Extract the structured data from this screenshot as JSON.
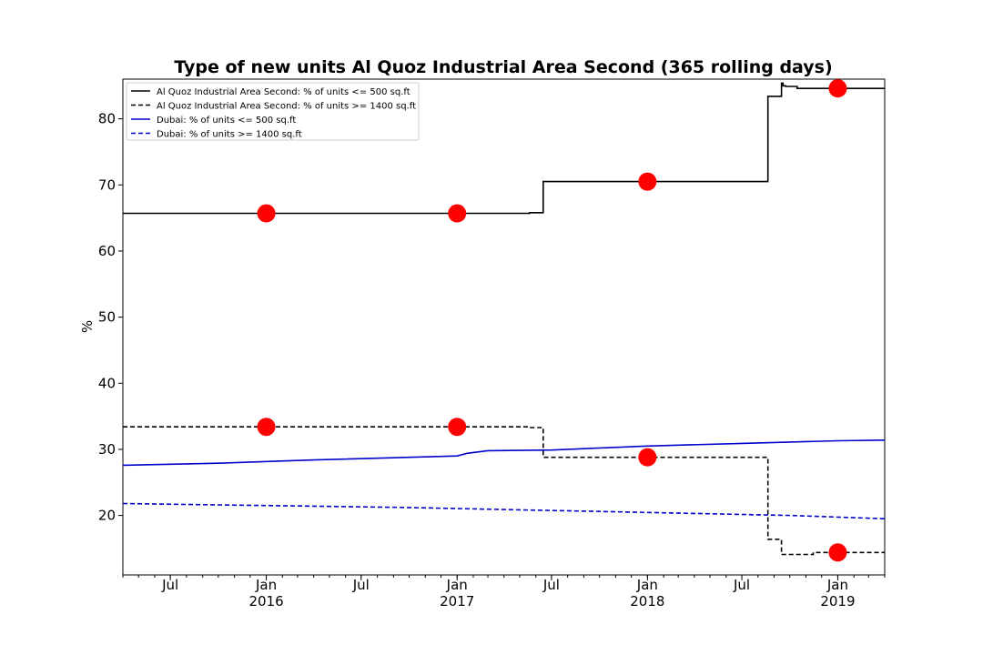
{
  "chart_data": {
    "type": "line",
    "title": "Type of new units Al Quoz Industrial Area Second (365 rolling days)",
    "xlabel": "",
    "ylabel": "%",
    "xlim": [
      "2015-04-01",
      "2019-04-01"
    ],
    "ylim": [
      11,
      86
    ],
    "yticks": [
      20,
      30,
      40,
      50,
      60,
      70,
      80
    ],
    "xticks": [
      {
        "date": "2015-07-01",
        "label": "Jul",
        "sub": ""
      },
      {
        "date": "2016-01-01",
        "label": "Jan",
        "sub": "2016"
      },
      {
        "date": "2016-07-01",
        "label": "Jul",
        "sub": ""
      },
      {
        "date": "2017-01-01",
        "label": "Jan",
        "sub": "2017"
      },
      {
        "date": "2017-07-01",
        "label": "Jul",
        "sub": ""
      },
      {
        "date": "2018-01-01",
        "label": "Jan",
        "sub": "2018"
      },
      {
        "date": "2018-07-01",
        "label": "Jul",
        "sub": ""
      },
      {
        "date": "2019-01-01",
        "label": "Jan",
        "sub": "2019"
      }
    ],
    "legend_position": "top-left",
    "grid": false,
    "series": [
      {
        "name": "Al Quoz Industrial Area Second: % of units <= 500 sq.ft",
        "color": "#000000",
        "dashed": false,
        "step": true,
        "x": [
          "2015-04-01",
          "2017-05-20",
          "2017-06-15",
          "2018-08-20",
          "2018-09-15",
          "2018-09-18",
          "2018-09-23",
          "2018-10-15",
          "2019-04-01"
        ],
        "y": [
          65.7,
          65.8,
          70.5,
          83.4,
          85.4,
          85.0,
          84.9,
          84.6,
          84.6
        ]
      },
      {
        "name": "Al Quoz Industrial Area Second: % of units >= 1400 sq.ft",
        "color": "#000000",
        "dashed": true,
        "step": true,
        "x": [
          "2015-04-01",
          "2017-05-20",
          "2017-06-15",
          "2018-08-20",
          "2018-09-15",
          "2018-09-22",
          "2018-11-15",
          "2019-04-01"
        ],
        "y": [
          33.4,
          33.3,
          28.8,
          16.4,
          14.1,
          14.1,
          14.4,
          14.4
        ]
      },
      {
        "name": "Dubai: % of units <= 500 sq.ft",
        "color": "#0000cc",
        "dashed": false,
        "step": false,
        "x": [
          "2015-04-01",
          "2015-10-01",
          "2016-04-01",
          "2016-10-01",
          "2017-01-01",
          "2017-01-20",
          "2017-03-01",
          "2017-07-01",
          "2018-01-01",
          "2018-07-01",
          "2019-01-01",
          "2019-04-01"
        ],
        "y": [
          27.6,
          27.9,
          28.4,
          28.8,
          29.0,
          29.4,
          29.8,
          29.9,
          30.5,
          30.9,
          31.3,
          31.4
        ]
      },
      {
        "name": "Dubai: % of units >= 1400 sq.ft",
        "color": "#0000cc",
        "dashed": true,
        "step": false,
        "x": [
          "2015-04-01",
          "2015-10-01",
          "2016-04-01",
          "2016-10-01",
          "2017-04-01",
          "2017-10-01",
          "2018-04-01",
          "2018-10-01",
          "2019-04-01"
        ],
        "y": [
          21.8,
          21.6,
          21.4,
          21.2,
          20.9,
          20.6,
          20.3,
          20.0,
          19.5
        ]
      }
    ],
    "markers": {
      "color": "#ff0000",
      "points": [
        {
          "x": "2016-01-01",
          "y": 65.7
        },
        {
          "x": "2017-01-01",
          "y": 65.7
        },
        {
          "x": "2018-01-01",
          "y": 70.5
        },
        {
          "x": "2019-01-01",
          "y": 84.6
        },
        {
          "x": "2016-01-01",
          "y": 33.4
        },
        {
          "x": "2017-01-01",
          "y": 33.4
        },
        {
          "x": "2018-01-01",
          "y": 28.8
        },
        {
          "x": "2019-01-01",
          "y": 14.4
        }
      ]
    }
  }
}
